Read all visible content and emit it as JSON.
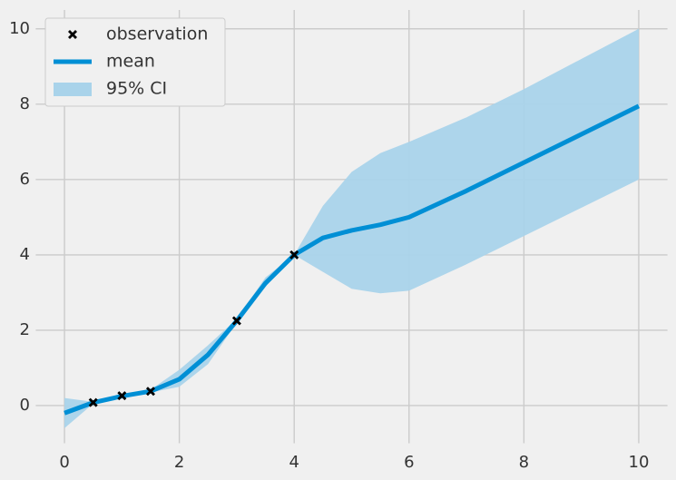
{
  "chart_data": {
    "type": "line",
    "x": [
      0,
      0.5,
      1,
      1.5,
      2,
      2.5,
      3,
      3.5,
      4,
      4.5,
      5,
      5.5,
      6,
      7,
      8,
      9,
      10
    ],
    "series": [
      {
        "name": "mean",
        "color": "#008fd5",
        "values": [
          -0.2,
          0.08,
          0.25,
          0.38,
          0.7,
          1.35,
          2.25,
          3.25,
          4.0,
          4.45,
          4.65,
          4.8,
          5.0,
          5.7,
          6.45,
          7.2,
          7.95
        ]
      }
    ],
    "band": {
      "name": "95% CI",
      "color": "#a9d3ea",
      "lower": [
        -0.6,
        0.05,
        0.24,
        0.35,
        0.5,
        1.1,
        2.2,
        3.15,
        4.0,
        3.55,
        3.1,
        2.98,
        3.05,
        3.75,
        4.5,
        5.25,
        6.0
      ],
      "upper": [
        0.2,
        0.1,
        0.27,
        0.42,
        0.95,
        1.6,
        2.3,
        3.4,
        4.0,
        5.3,
        6.2,
        6.7,
        7.0,
        7.65,
        8.4,
        9.2,
        10.0
      ]
    },
    "observations": {
      "name": "observation",
      "color": "#000000",
      "x": [
        0.5,
        1,
        1.5,
        3,
        4
      ],
      "values": [
        0.08,
        0.26,
        0.38,
        2.25,
        4.0
      ]
    },
    "xlim": [
      -0.5,
      10.5
    ],
    "ylim": [
      -1.0,
      10.5
    ],
    "xticks": [
      0,
      2,
      4,
      6,
      8,
      10
    ],
    "yticks": [
      0,
      2,
      4,
      6,
      8,
      10
    ],
    "grid": true,
    "legend": "upper left"
  }
}
